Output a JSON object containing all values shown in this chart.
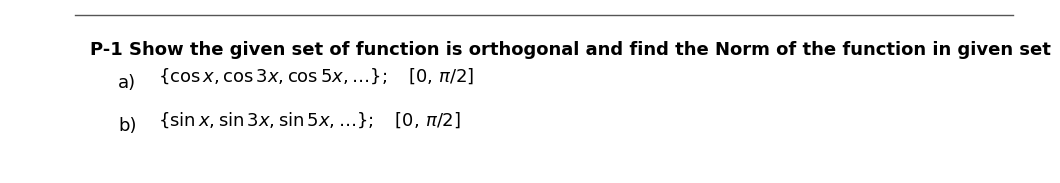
{
  "title": "P-1 Show the given set of function is orthogonal and find the Norm of the function in given set",
  "bg_color": "#ffffff",
  "text_color": "#000000",
  "title_fontsize": 13.0,
  "formula_fontsize": 13.0,
  "label_fontsize": 13.0,
  "line_color": "#555555",
  "label_a": "a)",
  "label_b": "b)",
  "text_a": "$\\{\\cos x, \\cos 3x, \\cos 5x, \\ldots\\};\\quad [0,\\, \\pi/2]$",
  "text_b": "$\\{\\sin x, \\sin 3x, \\sin 5x, \\ldots\\};\\quad [0,\\, \\pi/2]$"
}
